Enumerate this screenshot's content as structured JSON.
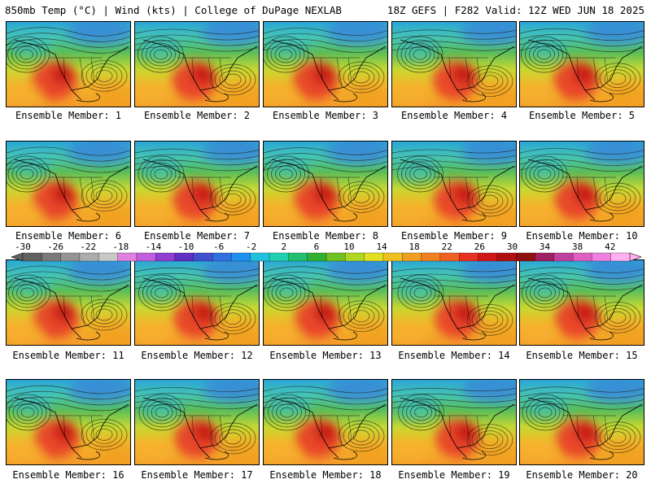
{
  "header": {
    "title": "850mb Temp (°C) | Wind (kts) | College of DuPage NEXLAB",
    "run_info": "18Z GEFS | F282 Valid: 12Z WED JUN 18 2025"
  },
  "colorbar": {
    "labels": [
      "-30",
      "-26",
      "-22",
      "-18",
      "-14",
      "-10",
      "-6",
      "-2",
      "2",
      "6",
      "10",
      "14",
      "18",
      "22",
      "26",
      "30",
      "34",
      "38",
      "42"
    ],
    "colors": [
      "#606060",
      "#7a7a7a",
      "#949494",
      "#adadad",
      "#c8c8c8",
      "#e080e0",
      "#c060e0",
      "#9040d0",
      "#6030c0",
      "#4050d0",
      "#3070e0",
      "#2090f0",
      "#20c0e0",
      "#20d0b0",
      "#20c070",
      "#30b030",
      "#70c020",
      "#b0d820",
      "#e0e020",
      "#f0c020",
      "#f0a020",
      "#f08020",
      "#f06020",
      "#e83020",
      "#d01818",
      "#b01010",
      "#901010",
      "#a02060",
      "#c040a0",
      "#e060c0",
      "#f080e0",
      "#ffb0f0"
    ]
  },
  "panels": [
    {
      "caption": "Ensemble Member: 1"
    },
    {
      "caption": "Ensemble Member: 2"
    },
    {
      "caption": "Ensemble Member: 3"
    },
    {
      "caption": "Ensemble Member: 4"
    },
    {
      "caption": "Ensemble Member: 5"
    },
    {
      "caption": "Ensemble Member: 6"
    },
    {
      "caption": "Ensemble Member: 7"
    },
    {
      "caption": "Ensemble Member: 8"
    },
    {
      "caption": "Ensemble Member: 9"
    },
    {
      "caption": "Ensemble Member: 10"
    },
    {
      "caption": "Ensemble Member: 11"
    },
    {
      "caption": "Ensemble Member: 12"
    },
    {
      "caption": "Ensemble Member: 13"
    },
    {
      "caption": "Ensemble Member: 14"
    },
    {
      "caption": "Ensemble Member: 15"
    },
    {
      "caption": "Ensemble Member: 16"
    },
    {
      "caption": "Ensemble Member: 17"
    },
    {
      "caption": "Ensemble Member: 18"
    },
    {
      "caption": "Ensemble Member: 19"
    },
    {
      "caption": "Ensemble Member: 20"
    }
  ]
}
